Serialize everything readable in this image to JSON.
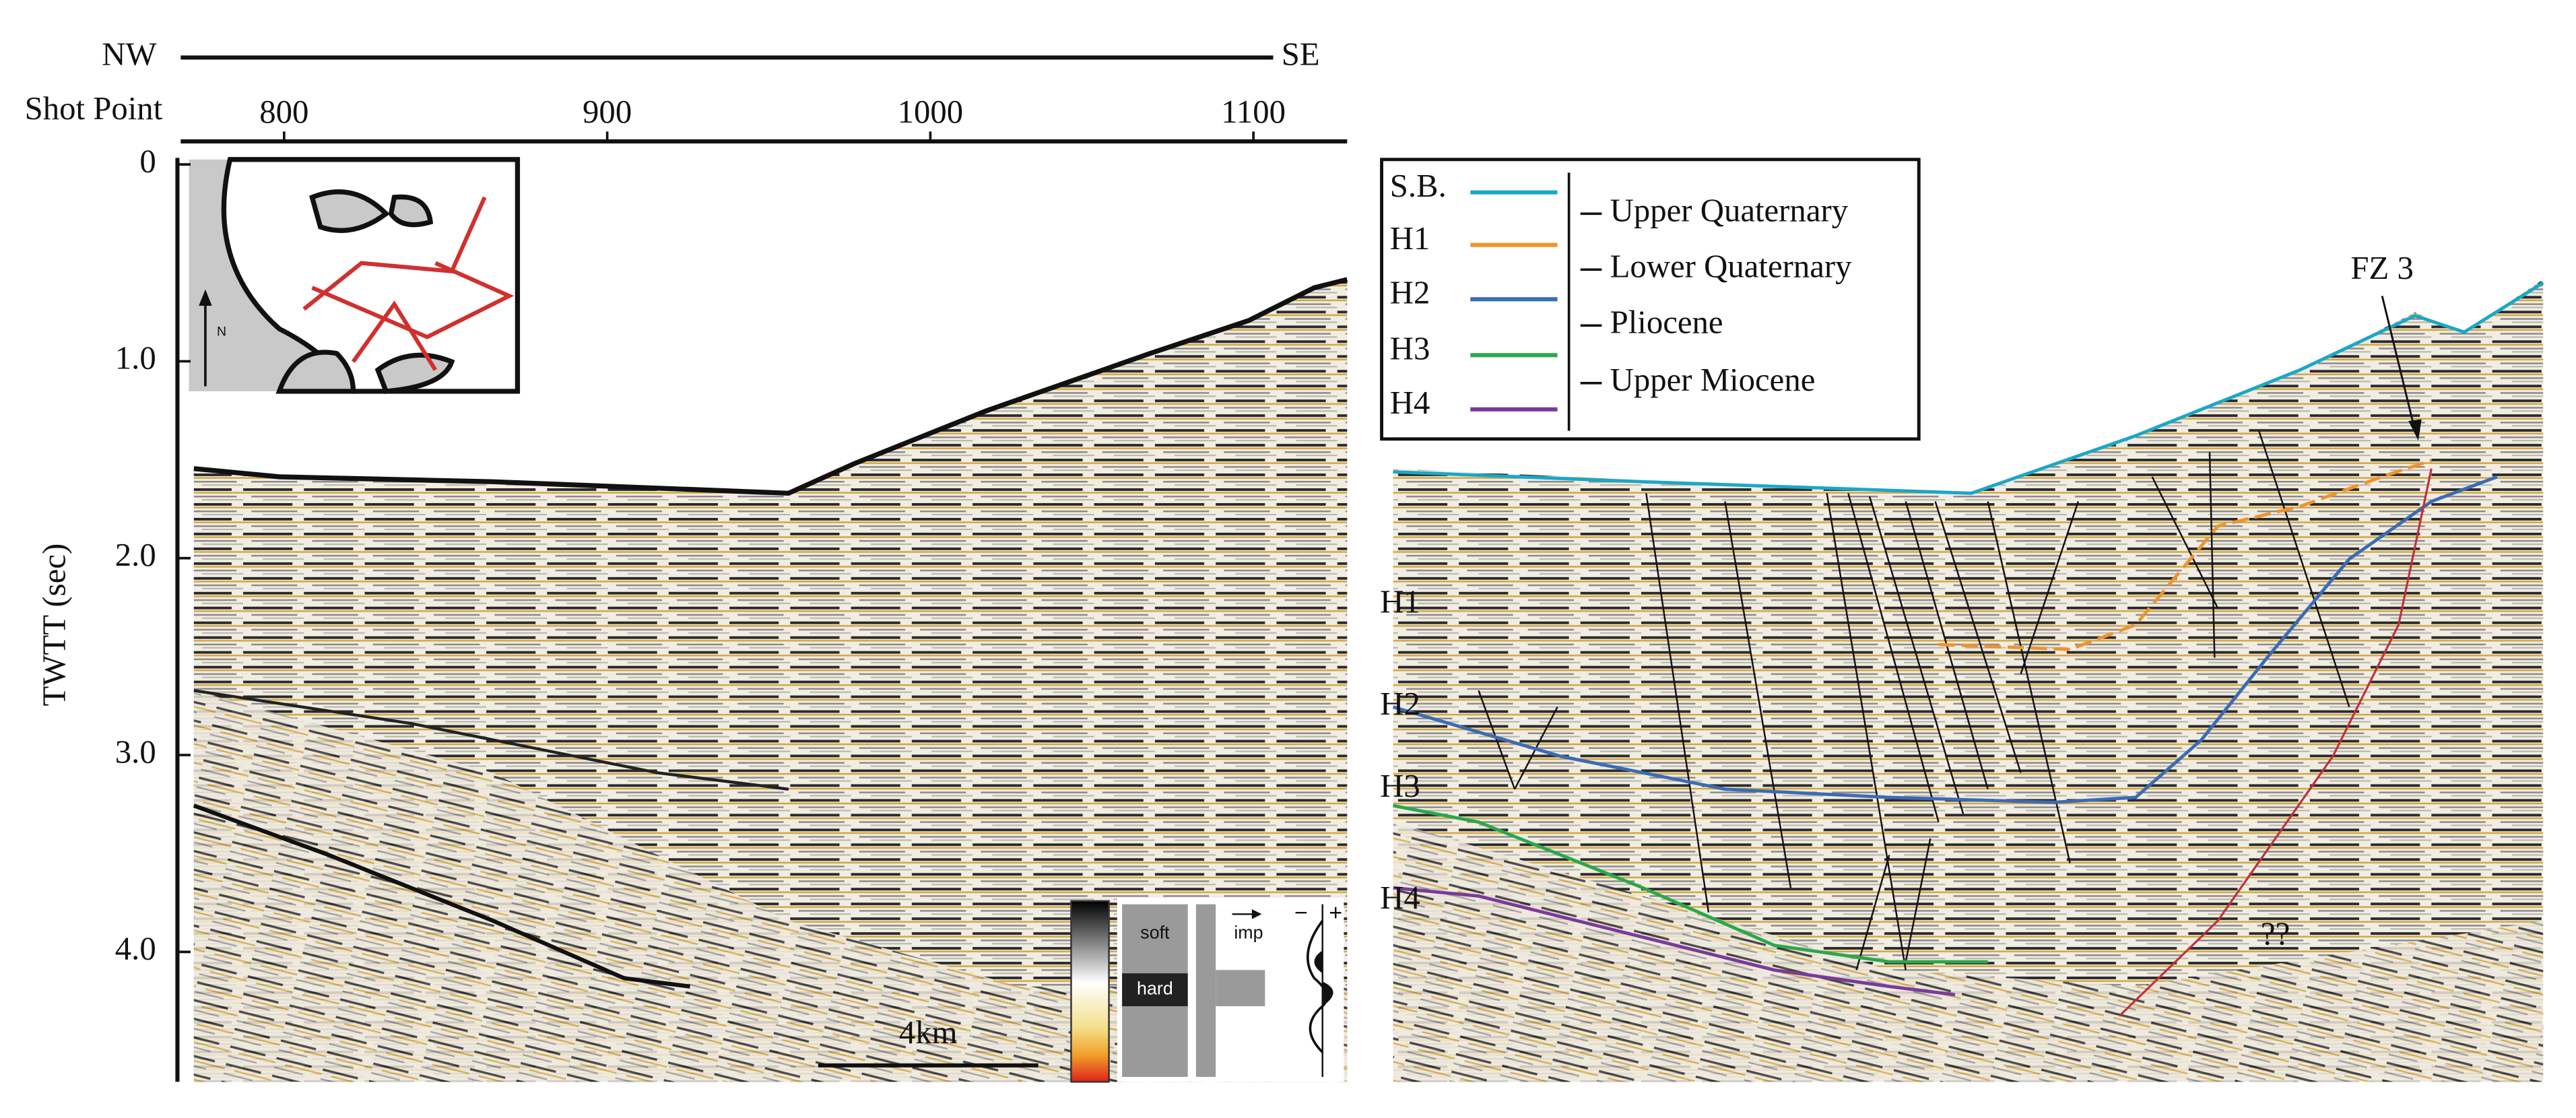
{
  "profile": {
    "start": "NW",
    "end": "SE"
  },
  "shot_point": {
    "label": "Shot Point",
    "ticks": [
      800,
      900,
      1000,
      1100
    ],
    "lim": [
      768,
      1129
    ]
  },
  "twtt": {
    "label": "TWTT (sec)",
    "ticks": [
      0,
      {
        "value": 1,
        "label": "1.0"
      },
      {
        "value": 2,
        "label": "2.0"
      },
      {
        "value": 3,
        "label": "3.0"
      },
      {
        "value": 4,
        "label": "4.0"
      }
    ],
    "lim": [
      0,
      4.66
    ]
  },
  "legend": {
    "entries": [
      {
        "name": "S.B.",
        "color": "#1aa7c9"
      },
      {
        "name": "H1",
        "color": "#f0932b"
      },
      {
        "name": "H2",
        "color": "#3b6bb5"
      },
      {
        "name": "H3",
        "color": "#2aa84a"
      },
      {
        "name": "H4",
        "color": "#7a3a9a"
      }
    ],
    "units": [
      "Upper Quaternary",
      "Lower  Quaternary",
      "Pliocene",
      "Upper  Miocene"
    ]
  },
  "annotations": {
    "fault_zone": "FZ 3",
    "unknown": "??",
    "horizons": [
      "H1",
      "H2",
      "H3",
      "H4"
    ]
  },
  "polarity": {
    "soft": "soft",
    "hard": "hard",
    "impedance": "imp",
    "negative": "−",
    "positive": "+"
  },
  "scale_bar": "4km",
  "north": "N"
}
